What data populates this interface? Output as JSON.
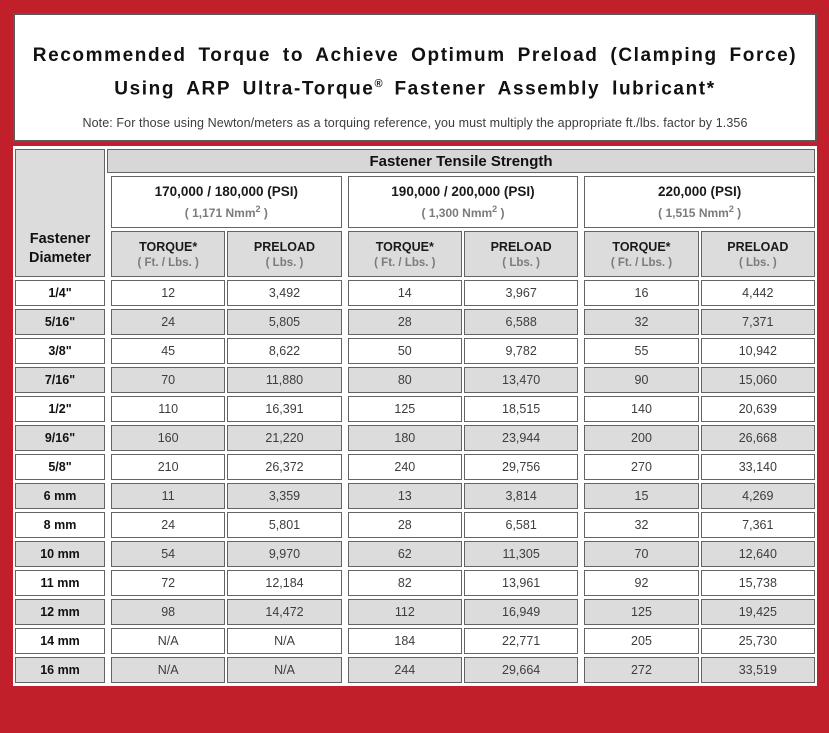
{
  "colors": {
    "frame_red": "#c1202b",
    "cell_gray": "#dcdcdc",
    "border_dark": "#58595b",
    "sub_text_gray": "#7a7b7e"
  },
  "header": {
    "title_line1": "Recommended Torque to Achieve Optimum Preload (Clamping Force)",
    "title_line2": {
      "text": "Using ARP Ultra-Torque",
      "sup": "®",
      "rest": " Fastener Assembly lubricant*"
    },
    "note": "Note: For those using Newton/meters as a torquing reference, you must multiply the appropriate ft./lbs. factor by 1.356"
  },
  "table": {
    "corner_header_line1": "Fastener",
    "corner_header_line2": "Diameter",
    "main_header": "Fastener Tensile Strength",
    "col_headers": {
      "torque": "TORQUE*",
      "torque_sub": "( Ft. / Lbs. )",
      "preload": "PRELOAD",
      "preload_sub": "( Lbs. )"
    },
    "groups": [
      {
        "psi": "170,000 / 180,000 (PSI)",
        "nmm_base": "( 1,171 Nmm",
        "nmm_exp": "2",
        "nmm_close": " )"
      },
      {
        "psi": "190,000 / 200,000 (PSI)",
        "nmm_base": "( 1,300 Nmm",
        "nmm_exp": "2",
        "nmm_close": " )"
      },
      {
        "psi": "220,000 (PSI)",
        "nmm_base": "( 1,515 Nmm",
        "nmm_exp": "2",
        "nmm_close": " )"
      }
    ],
    "rows": [
      {
        "d": "1/4\"",
        "v": [
          "12",
          "3,492",
          "14",
          "3,967",
          "16",
          "4,442"
        ]
      },
      {
        "d": "5/16\"",
        "v": [
          "24",
          "5,805",
          "28",
          "6,588",
          "32",
          "7,371"
        ]
      },
      {
        "d": "3/8\"",
        "v": [
          "45",
          "8,622",
          "50",
          "9,782",
          "55",
          "10,942"
        ]
      },
      {
        "d": "7/16\"",
        "v": [
          "70",
          "11,880",
          "80",
          "13,470",
          "90",
          "15,060"
        ]
      },
      {
        "d": "1/2\"",
        "v": [
          "110",
          "16,391",
          "125",
          "18,515",
          "140",
          "20,639"
        ]
      },
      {
        "d": "9/16\"",
        "v": [
          "160",
          "21,220",
          "180",
          "23,944",
          "200",
          "26,668"
        ]
      },
      {
        "d": "5/8\"",
        "v": [
          "210",
          "26,372",
          "240",
          "29,756",
          "270",
          "33,140"
        ]
      },
      {
        "d": "6 mm",
        "v": [
          "11",
          "3,359",
          "13",
          "3,814",
          "15",
          "4,269"
        ]
      },
      {
        "d": "8 mm",
        "v": [
          "24",
          "5,801",
          "28",
          "6,581",
          "32",
          "7,361"
        ]
      },
      {
        "d": "10 mm",
        "v": [
          "54",
          "9,970",
          "62",
          "11,305",
          "70",
          "12,640"
        ]
      },
      {
        "d": "11 mm",
        "v": [
          "72",
          "12,184",
          "82",
          "13,961",
          "92",
          "15,738"
        ]
      },
      {
        "d": "12 mm",
        "v": [
          "98",
          "14,472",
          "112",
          "16,949",
          "125",
          "19,425"
        ]
      },
      {
        "d": "14 mm",
        "v": [
          "N/A",
          "N/A",
          "184",
          "22,771",
          "205",
          "25,730"
        ]
      },
      {
        "d": "16 mm",
        "v": [
          "N/A",
          "N/A",
          "244",
          "29,664",
          "272",
          "33,519"
        ]
      }
    ]
  }
}
